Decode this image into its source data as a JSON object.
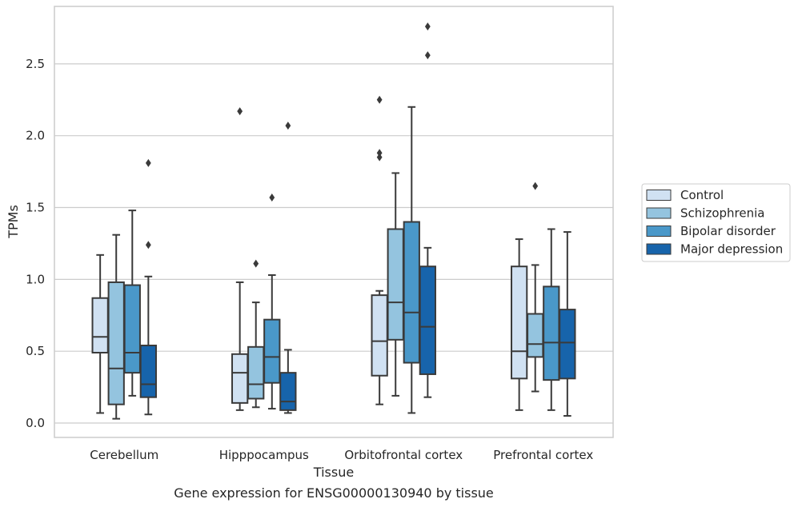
{
  "chart_data": {
    "type": "box",
    "title": "",
    "caption": "Gene expression for ENSG00000130940 by tissue",
    "xlabel": "Tissue",
    "ylabel": "TPMs",
    "ylim": [
      -0.1,
      2.9
    ],
    "yticks": [
      "0.0",
      "0.5",
      "1.0",
      "1.5",
      "2.0",
      "2.5"
    ],
    "grid": "horizontal",
    "legend_position": "right",
    "categories": [
      "Cerebellum",
      "Hipppocampus",
      "Orbitofrontal cortex",
      "Prefrontal cortex"
    ],
    "series": [
      {
        "name": "Control",
        "color": "#d0e1f2",
        "boxes": [
          {
            "whisker_low": 0.07,
            "q1": 0.49,
            "median": 0.6,
            "q3": 0.87,
            "whisker_high": 1.17,
            "outliers": []
          },
          {
            "whisker_low": 0.09,
            "q1": 0.14,
            "median": 0.35,
            "q3": 0.48,
            "whisker_high": 0.98,
            "outliers": [
              2.17
            ]
          },
          {
            "whisker_low": 0.13,
            "q1": 0.33,
            "median": 0.57,
            "q3": 0.89,
            "whisker_high": 0.92,
            "outliers": [
              1.85,
              1.88,
              2.25
            ]
          },
          {
            "whisker_low": 0.09,
            "q1": 0.31,
            "median": 0.5,
            "q3": 1.09,
            "whisker_high": 1.28,
            "outliers": []
          }
        ]
      },
      {
        "name": "Schizophrenia",
        "color": "#94c4df",
        "boxes": [
          {
            "whisker_low": 0.03,
            "q1": 0.13,
            "median": 0.38,
            "q3": 0.98,
            "whisker_high": 1.31,
            "outliers": []
          },
          {
            "whisker_low": 0.11,
            "q1": 0.17,
            "median": 0.27,
            "q3": 0.53,
            "whisker_high": 0.84,
            "outliers": [
              1.11
            ]
          },
          {
            "whisker_low": 0.19,
            "q1": 0.58,
            "median": 0.84,
            "q3": 1.35,
            "whisker_high": 1.74,
            "outliers": []
          },
          {
            "whisker_low": 0.22,
            "q1": 0.46,
            "median": 0.55,
            "q3": 0.76,
            "whisker_high": 1.1,
            "outliers": [
              1.65
            ]
          }
        ]
      },
      {
        "name": "Bipolar disorder",
        "color": "#4a98c9",
        "boxes": [
          {
            "whisker_low": 0.19,
            "q1": 0.35,
            "median": 0.49,
            "q3": 0.96,
            "whisker_high": 1.48,
            "outliers": []
          },
          {
            "whisker_low": 0.1,
            "q1": 0.28,
            "median": 0.46,
            "q3": 0.72,
            "whisker_high": 1.03,
            "outliers": [
              1.57
            ]
          },
          {
            "whisker_low": 0.07,
            "q1": 0.42,
            "median": 0.77,
            "q3": 1.4,
            "whisker_high": 2.2,
            "outliers": []
          },
          {
            "whisker_low": 0.09,
            "q1": 0.3,
            "median": 0.56,
            "q3": 0.95,
            "whisker_high": 1.35,
            "outliers": []
          }
        ]
      },
      {
        "name": "Major depression",
        "color": "#1764ab",
        "boxes": [
          {
            "whisker_low": 0.06,
            "q1": 0.18,
            "median": 0.27,
            "q3": 0.54,
            "whisker_high": 1.02,
            "outliers": [
              1.24,
              1.81
            ]
          },
          {
            "whisker_low": 0.07,
            "q1": 0.09,
            "median": 0.15,
            "q3": 0.35,
            "whisker_high": 0.51,
            "outliers": [
              2.07
            ]
          },
          {
            "whisker_low": 0.18,
            "q1": 0.34,
            "median": 0.67,
            "q3": 1.09,
            "whisker_high": 1.22,
            "outliers": [
              2.56,
              2.76
            ]
          },
          {
            "whisker_low": 0.05,
            "q1": 0.31,
            "median": 0.56,
            "q3": 0.79,
            "whisker_high": 1.33,
            "outliers": []
          }
        ]
      }
    ]
  }
}
